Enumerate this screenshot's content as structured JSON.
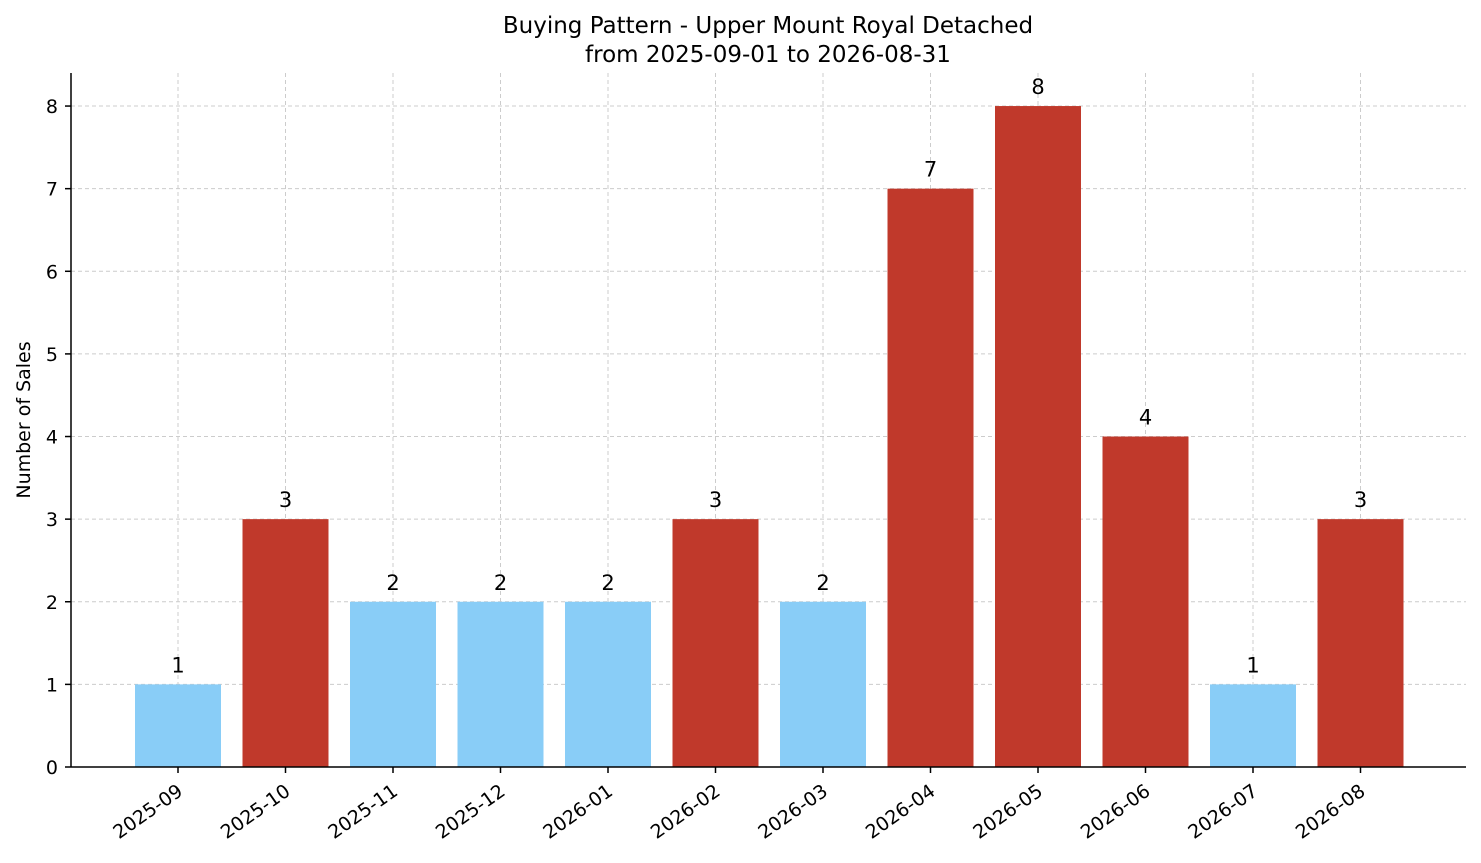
{
  "chart_data": {
    "type": "bar",
    "title": "Buying Pattern - Upper Mount Royal Detached",
    "subtitle": "from 2025-09-01 to 2026-08-31",
    "xlabel": "",
    "ylabel": "Number of Sales",
    "categories": [
      "2025-09",
      "2025-10",
      "2025-11",
      "2025-12",
      "2026-01",
      "2026-02",
      "2026-03",
      "2026-04",
      "2026-05",
      "2026-06",
      "2026-07",
      "2026-08"
    ],
    "values": [
      1,
      3,
      2,
      2,
      2,
      3,
      2,
      7,
      8,
      4,
      1,
      3
    ],
    "bar_colors": [
      "#89cdf7",
      "#c0392b",
      "#89cdf7",
      "#89cdf7",
      "#89cdf7",
      "#c0392b",
      "#89cdf7",
      "#c0392b",
      "#c0392b",
      "#c0392b",
      "#89cdf7",
      "#c0392b"
    ],
    "ylim": [
      0,
      8.4
    ],
    "yticks": [
      0,
      1,
      2,
      3,
      4,
      5,
      6,
      7,
      8
    ],
    "grid": true,
    "data_labels": true,
    "colors": {
      "low": "#89cdf7",
      "high": "#c0392b",
      "grid": "#cccccc",
      "axis": "#000000"
    }
  }
}
